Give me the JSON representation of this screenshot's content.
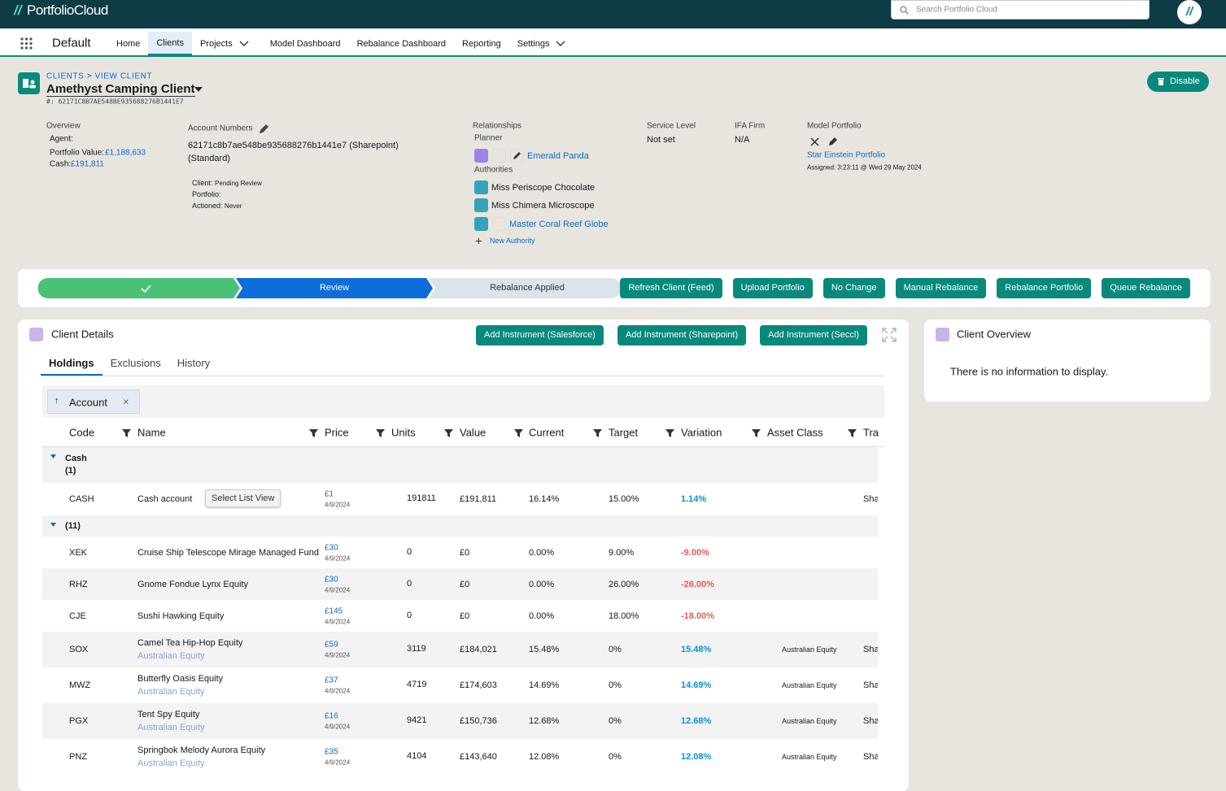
{
  "header": {
    "logo": "PortfolioCloud",
    "search_placeholder": "Search Portfolio Cloud"
  },
  "nav": {
    "app_name": "Default",
    "items": [
      "Home",
      "Clients",
      "Projects",
      "Model Dashboard",
      "Rebalance Dashboard",
      "Reporting",
      "Settings"
    ]
  },
  "record": {
    "breadcrumb": "CLIENTS > VIEW CLIENT",
    "title": "Amethyst Camping Client",
    "id": "#: 62171C8B7AE548BE935688276B1441E7",
    "disable_button": "Disable"
  },
  "overview": {
    "heading": "Overview",
    "agent_label": "Agent:",
    "portfolio_value_label": "Portfolio Value:",
    "portfolio_value": "£1,188,633",
    "cash_label": "Cash:",
    "cash": "£191,811"
  },
  "account_numbers": {
    "heading": "Account Numbers",
    "number": "62171c8b7ae548be935688276b1441e7 (Sharepoint)",
    "type": "(Standard)",
    "client_label": "Client:",
    "client_status": "Pending Review",
    "portfolio_label": "Portfolio:",
    "actioned_label": "Actioned:",
    "actioned": "Never"
  },
  "relationships": {
    "heading": "Relationships",
    "planner_label": "Planner",
    "planner": "Emerald Panda",
    "authorities_label": "Authorities",
    "authorities": [
      "Miss Periscope Chocolate",
      "Miss Chimera Microscope",
      "Master Coral Reef Globe"
    ],
    "new_authority": "New Authority"
  },
  "service_level": {
    "heading": "Service Level",
    "value": "Not set"
  },
  "ifa_firm": {
    "heading": "IFA Firm",
    "value": "N/A"
  },
  "model_portfolio": {
    "heading": "Model Portfolio",
    "name": "Star Einstein Portfolio",
    "assigned": "Assigned: 3:23:11 @ Wed 29 May 2024"
  },
  "path": {
    "steps": [
      "Review",
      "Rebalance Applied"
    ],
    "actions": [
      "Refresh Client (Feed)",
      "Upload Portfolio",
      "No Change",
      "Manual Rebalance",
      "Rebalance Portfolio",
      "Queue Rebalance"
    ]
  },
  "client_details": {
    "title": "Client Details",
    "actions": [
      "Add Instrument (Salesforce)",
      "Add Instrument (Sharepoint)",
      "Add Instrument (Seccl)"
    ],
    "tabs": [
      "Holdings",
      "Exclusions",
      "History"
    ],
    "group_by": "Account",
    "table": {
      "columns": [
        "Code",
        "Name",
        "Price",
        "Units",
        "Value",
        "Current",
        "Target",
        "Variation",
        "Asset Class",
        "Tra"
      ],
      "tooltip": "Select List View",
      "groups": [
        {
          "label": "Cash",
          "count": "(1)",
          "rows": [
            {
              "code": "CASH",
              "name": "Cash account",
              "price": "£1",
              "price_date": "4/9/2024",
              "units": "191811",
              "value": "£191,811",
              "current": "16.14%",
              "target": "15.00%",
              "variation": "1.14%",
              "tra": "Sha"
            }
          ]
        },
        {
          "count": "(11)",
          "rows": [
            {
              "code": "XEK",
              "name": "Cruise Ship Telescope Mirage Managed Fund",
              "price": "£30",
              "price_date": "4/9/2024",
              "units": "0",
              "value": "£0",
              "current": "0.00%",
              "target": "9.00%",
              "variation": "-9.00%"
            },
            {
              "code": "RHZ",
              "name": "Gnome Fondue Lynx Equity",
              "price": "£30",
              "price_date": "4/9/2024",
              "units": "0",
              "value": "£0",
              "current": "0.00%",
              "target": "26.00%",
              "variation": "-26.00%"
            },
            {
              "code": "CJE",
              "name": "Sushi Hawking Equity",
              "price": "£145",
              "price_date": "4/9/2024",
              "units": "0",
              "value": "£0",
              "current": "0.00%",
              "target": "18.00%",
              "variation": "-18.00%"
            },
            {
              "code": "SOX",
              "name": "Camel Tea Hip-Hop Equity",
              "sub": "Australian Equity",
              "price": "£59",
              "price_date": "4/9/2024",
              "units": "3119",
              "value": "£184,021",
              "current": "15.48%",
              "target": "0%",
              "variation": "15.48%",
              "asset_class": "Australian Equity",
              "tra": "Sha"
            },
            {
              "code": "MWZ",
              "name": "Butterfly Oasis Equity",
              "sub": "Australian Equity",
              "price": "£37",
              "price_date": "4/9/2024",
              "units": "4719",
              "value": "£174,603",
              "current": "14.69%",
              "target": "0%",
              "variation": "14.69%",
              "asset_class": "Australian Equity",
              "tra": "Sha"
            },
            {
              "code": "PGX",
              "name": "Tent Spy Equity",
              "sub": "Australian Equity",
              "price": "£16",
              "price_date": "4/9/2024",
              "units": "9421",
              "value": "£150,736",
              "current": "12.68%",
              "target": "0%",
              "variation": "12.68%",
              "asset_class": "Australian Equity",
              "tra": "Sha"
            },
            {
              "code": "PNZ",
              "name": "Springbok Melody Aurora Equity",
              "sub": "Australian Equity",
              "price": "£35",
              "price_date": "4/9/2024",
              "units": "4104",
              "value": "£143,640",
              "current": "12.08%",
              "target": "0%",
              "variation": "12.08%",
              "asset_class": "Australian Equity",
              "tra": "Sha"
            }
          ]
        }
      ]
    }
  },
  "client_overview": {
    "title": "Client Overview",
    "empty_message": "There is no information to display."
  }
}
